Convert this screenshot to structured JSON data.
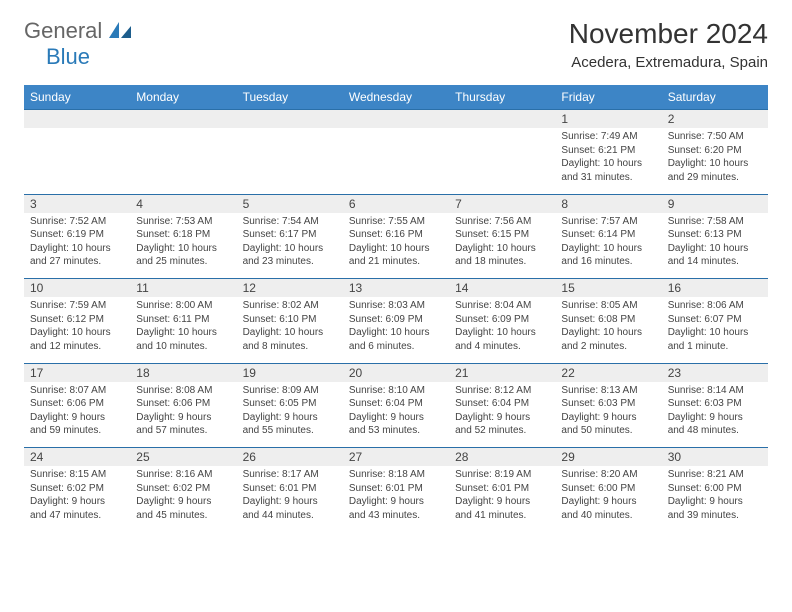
{
  "logo": {
    "word1": "General",
    "word2": "Blue"
  },
  "title": "November 2024",
  "location": "Acedera, Extremadura, Spain",
  "colors": {
    "header_bg": "#3d85c6",
    "header_text": "#ffffff",
    "daynum_bg": "#eeeeee",
    "border": "#2a6fa8",
    "text": "#444444",
    "logo_gray": "#666666",
    "logo_blue": "#2a7ab8"
  },
  "weekdays": [
    "Sunday",
    "Monday",
    "Tuesday",
    "Wednesday",
    "Thursday",
    "Friday",
    "Saturday"
  ],
  "weeks": [
    [
      {
        "n": "",
        "t": ""
      },
      {
        "n": "",
        "t": ""
      },
      {
        "n": "",
        "t": ""
      },
      {
        "n": "",
        "t": ""
      },
      {
        "n": "",
        "t": ""
      },
      {
        "n": "1",
        "t": "Sunrise: 7:49 AM\nSunset: 6:21 PM\nDaylight: 10 hours and 31 minutes."
      },
      {
        "n": "2",
        "t": "Sunrise: 7:50 AM\nSunset: 6:20 PM\nDaylight: 10 hours and 29 minutes."
      }
    ],
    [
      {
        "n": "3",
        "t": "Sunrise: 7:52 AM\nSunset: 6:19 PM\nDaylight: 10 hours and 27 minutes."
      },
      {
        "n": "4",
        "t": "Sunrise: 7:53 AM\nSunset: 6:18 PM\nDaylight: 10 hours and 25 minutes."
      },
      {
        "n": "5",
        "t": "Sunrise: 7:54 AM\nSunset: 6:17 PM\nDaylight: 10 hours and 23 minutes."
      },
      {
        "n": "6",
        "t": "Sunrise: 7:55 AM\nSunset: 6:16 PM\nDaylight: 10 hours and 21 minutes."
      },
      {
        "n": "7",
        "t": "Sunrise: 7:56 AM\nSunset: 6:15 PM\nDaylight: 10 hours and 18 minutes."
      },
      {
        "n": "8",
        "t": "Sunrise: 7:57 AM\nSunset: 6:14 PM\nDaylight: 10 hours and 16 minutes."
      },
      {
        "n": "9",
        "t": "Sunrise: 7:58 AM\nSunset: 6:13 PM\nDaylight: 10 hours and 14 minutes."
      }
    ],
    [
      {
        "n": "10",
        "t": "Sunrise: 7:59 AM\nSunset: 6:12 PM\nDaylight: 10 hours and 12 minutes."
      },
      {
        "n": "11",
        "t": "Sunrise: 8:00 AM\nSunset: 6:11 PM\nDaylight: 10 hours and 10 minutes."
      },
      {
        "n": "12",
        "t": "Sunrise: 8:02 AM\nSunset: 6:10 PM\nDaylight: 10 hours and 8 minutes."
      },
      {
        "n": "13",
        "t": "Sunrise: 8:03 AM\nSunset: 6:09 PM\nDaylight: 10 hours and 6 minutes."
      },
      {
        "n": "14",
        "t": "Sunrise: 8:04 AM\nSunset: 6:09 PM\nDaylight: 10 hours and 4 minutes."
      },
      {
        "n": "15",
        "t": "Sunrise: 8:05 AM\nSunset: 6:08 PM\nDaylight: 10 hours and 2 minutes."
      },
      {
        "n": "16",
        "t": "Sunrise: 8:06 AM\nSunset: 6:07 PM\nDaylight: 10 hours and 1 minute."
      }
    ],
    [
      {
        "n": "17",
        "t": "Sunrise: 8:07 AM\nSunset: 6:06 PM\nDaylight: 9 hours and 59 minutes."
      },
      {
        "n": "18",
        "t": "Sunrise: 8:08 AM\nSunset: 6:06 PM\nDaylight: 9 hours and 57 minutes."
      },
      {
        "n": "19",
        "t": "Sunrise: 8:09 AM\nSunset: 6:05 PM\nDaylight: 9 hours and 55 minutes."
      },
      {
        "n": "20",
        "t": "Sunrise: 8:10 AM\nSunset: 6:04 PM\nDaylight: 9 hours and 53 minutes."
      },
      {
        "n": "21",
        "t": "Sunrise: 8:12 AM\nSunset: 6:04 PM\nDaylight: 9 hours and 52 minutes."
      },
      {
        "n": "22",
        "t": "Sunrise: 8:13 AM\nSunset: 6:03 PM\nDaylight: 9 hours and 50 minutes."
      },
      {
        "n": "23",
        "t": "Sunrise: 8:14 AM\nSunset: 6:03 PM\nDaylight: 9 hours and 48 minutes."
      }
    ],
    [
      {
        "n": "24",
        "t": "Sunrise: 8:15 AM\nSunset: 6:02 PM\nDaylight: 9 hours and 47 minutes."
      },
      {
        "n": "25",
        "t": "Sunrise: 8:16 AM\nSunset: 6:02 PM\nDaylight: 9 hours and 45 minutes."
      },
      {
        "n": "26",
        "t": "Sunrise: 8:17 AM\nSunset: 6:01 PM\nDaylight: 9 hours and 44 minutes."
      },
      {
        "n": "27",
        "t": "Sunrise: 8:18 AM\nSunset: 6:01 PM\nDaylight: 9 hours and 43 minutes."
      },
      {
        "n": "28",
        "t": "Sunrise: 8:19 AM\nSunset: 6:01 PM\nDaylight: 9 hours and 41 minutes."
      },
      {
        "n": "29",
        "t": "Sunrise: 8:20 AM\nSunset: 6:00 PM\nDaylight: 9 hours and 40 minutes."
      },
      {
        "n": "30",
        "t": "Sunrise: 8:21 AM\nSunset: 6:00 PM\nDaylight: 9 hours and 39 minutes."
      }
    ]
  ]
}
